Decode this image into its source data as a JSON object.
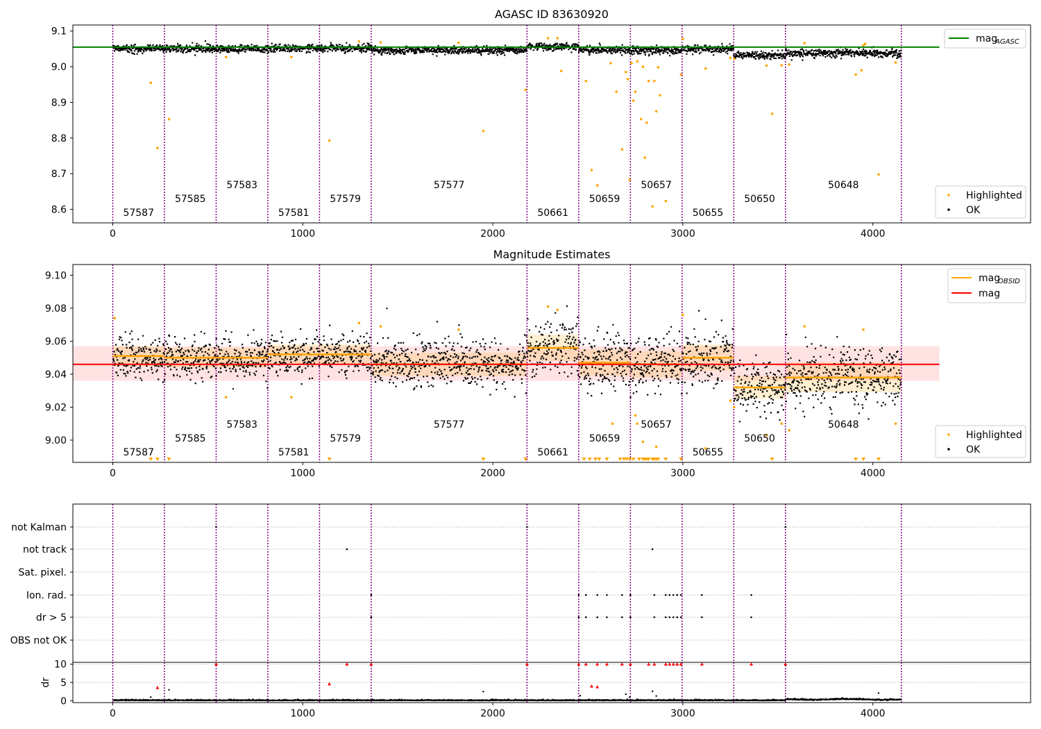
{
  "figure": {
    "obs_boundaries": [
      0,
      272,
      544,
      816,
      1088,
      1360,
      2180,
      2452,
      2724,
      2996,
      3268,
      3540,
      4150
    ],
    "obsid_labels": [
      {
        "text": "57587",
        "x": 136,
        "level": 0
      },
      {
        "text": "57585",
        "x": 408,
        "level": 1
      },
      {
        "text": "57583",
        "x": 680,
        "level": 2
      },
      {
        "text": "57581",
        "x": 952,
        "level": 0
      },
      {
        "text": "57579",
        "x": 1224,
        "level": 1
      },
      {
        "text": "57577",
        "x": 1770,
        "level": 2
      },
      {
        "text": "50661",
        "x": 2316,
        "level": 0
      },
      {
        "text": "50659",
        "x": 2588,
        "level": 1
      },
      {
        "text": "50657",
        "x": 2860,
        "level": 2
      },
      {
        "text": "50655",
        "x": 3132,
        "level": 0
      },
      {
        "text": "50650",
        "x": 3404,
        "level": 1
      },
      {
        "text": "50648",
        "x": 3845,
        "level": 2
      }
    ]
  },
  "chart_data": [
    {
      "type": "scatter",
      "title": "AGASC ID 83630920",
      "xlim": [
        -210,
        4830
      ],
      "ylim": [
        8.562,
        9.117
      ],
      "xticks": [
        "0",
        "1000",
        "2000",
        "3000",
        "4000"
      ],
      "yticks": [
        "8.6",
        "8.7",
        "8.8",
        "8.9",
        "9.0",
        "9.1"
      ],
      "mag_agasc": 9.055,
      "legend_lines": [
        {
          "label": "mag",
          "sub": "AGASC",
          "color": "#008000"
        }
      ],
      "legend_points": [
        {
          "label": "Highlighted",
          "color": "#ffa500"
        },
        {
          "label": "OK",
          "color": "#000000"
        }
      ],
      "segment_means": [
        9.051,
        9.05,
        9.05,
        9.052,
        9.052,
        9.046,
        9.056,
        9.047,
        9.046,
        9.05,
        9.032,
        9.038
      ],
      "highlighted": [
        [
          200,
          8.955
        ],
        [
          235,
          8.772
        ],
        [
          296,
          8.853
        ],
        [
          596,
          9.027
        ],
        [
          940,
          9.027
        ],
        [
          1140,
          8.793
        ],
        [
          1296,
          9.071
        ],
        [
          1410,
          9.068
        ],
        [
          1820,
          9.067
        ],
        [
          1950,
          8.82
        ],
        [
          2172,
          8.935
        ],
        [
          2290,
          9.08
        ],
        [
          2340,
          9.08
        ],
        [
          2360,
          8.988
        ],
        [
          2490,
          8.96
        ],
        [
          2520,
          8.71
        ],
        [
          2550,
          8.667
        ],
        [
          2620,
          9.01
        ],
        [
          2650,
          8.93
        ],
        [
          2680,
          8.768
        ],
        [
          2700,
          8.985
        ],
        [
          2710,
          8.965
        ],
        [
          2720,
          8.683
        ],
        [
          2730,
          9.01
        ],
        [
          2740,
          8.905
        ],
        [
          2750,
          8.93
        ],
        [
          2760,
          9.015
        ],
        [
          2780,
          8.853
        ],
        [
          2790,
          9.0
        ],
        [
          2800,
          8.745
        ],
        [
          2810,
          8.843
        ],
        [
          2820,
          8.96
        ],
        [
          2840,
          8.608
        ],
        [
          2850,
          8.96
        ],
        [
          2860,
          8.875
        ],
        [
          2870,
          8.998
        ],
        [
          2880,
          8.92
        ],
        [
          2910,
          8.623
        ],
        [
          2990,
          8.978
        ],
        [
          3000,
          9.078
        ],
        [
          3120,
          8.995
        ],
        [
          3250,
          9.025
        ],
        [
          3270,
          9.022
        ],
        [
          3440,
          9.003
        ],
        [
          3470,
          8.868
        ],
        [
          3520,
          9.004
        ],
        [
          3560,
          9.006
        ],
        [
          3640,
          9.066
        ],
        [
          3910,
          8.978
        ],
        [
          3940,
          8.99
        ],
        [
          3950,
          9.06
        ],
        [
          3960,
          9.064
        ],
        [
          4030,
          8.698
        ],
        [
          4120,
          9.012
        ]
      ]
    },
    {
      "type": "scatter",
      "title": "Magnitude Estimates",
      "xlim": [
        -210,
        4830
      ],
      "ylim": [
        8.9865,
        9.1065
      ],
      "xticks": [
        "0",
        "1000",
        "2000",
        "3000",
        "4000"
      ],
      "yticks": [
        "9.00",
        "9.02",
        "9.04",
        "9.06",
        "9.08",
        "9.10"
      ],
      "mag": 9.046,
      "mag_band": [
        9.036,
        9.057
      ],
      "legend_lines": [
        {
          "label": "mag",
          "sub": "OBSID",
          "color": "#ffa500"
        },
        {
          "label": "mag",
          "sub": "",
          "color": "#ff0000"
        }
      ],
      "legend_points": [
        {
          "label": "Highlighted",
          "color": "#ffa500"
        },
        {
          "label": "OK",
          "color": "#000000"
        }
      ],
      "segment_means": [
        9.051,
        9.05,
        9.05,
        9.052,
        9.052,
        9.046,
        9.056,
        9.047,
        9.046,
        9.05,
        9.032,
        9.038
      ],
      "segment_sigma": [
        0.006,
        0.006,
        0.006,
        0.006,
        0.006,
        0.007,
        0.008,
        0.008,
        0.008,
        0.008,
        0.007,
        0.009
      ],
      "highlighted": [
        [
          10,
          9.074
        ],
        [
          596,
          9.026
        ],
        [
          940,
          9.026
        ],
        [
          1296,
          9.071
        ],
        [
          1410,
          9.069
        ],
        [
          1820,
          9.067
        ],
        [
          2290,
          9.081
        ],
        [
          2340,
          9.079
        ],
        [
          2630,
          9.01
        ],
        [
          2750,
          9.015
        ],
        [
          2760,
          9.01
        ],
        [
          2790,
          8.999
        ],
        [
          2860,
          8.996
        ],
        [
          3000,
          9.076
        ],
        [
          3120,
          8.995
        ],
        [
          3250,
          9.024
        ],
        [
          3270,
          9.02
        ],
        [
          3440,
          9.003
        ],
        [
          3520,
          9.01
        ],
        [
          3560,
          9.006
        ],
        [
          3640,
          9.069
        ],
        [
          3950,
          9.067
        ],
        [
          4120,
          9.01
        ]
      ],
      "below_axis_markers": [
        200,
        235,
        296,
        1140,
        1950,
        2172,
        2480,
        2510,
        2540,
        2560,
        2600,
        2670,
        2690,
        2705,
        2720,
        2740,
        2770,
        2790,
        2800,
        2810,
        2820,
        2840,
        2850,
        2860,
        2870,
        2910,
        2990,
        3470,
        3910,
        3950,
        4030
      ]
    },
    {
      "type": "scatter",
      "xlim": [
        -210,
        4830
      ],
      "categories": [
        "not Kalman",
        "not track",
        "Sat. pixel.",
        "Ion. rad.",
        "dr > 5",
        "OBS not OK"
      ],
      "flag_points": {
        "not Kalman": [
          544,
          2180,
          3540
        ],
        "not track": [
          1232,
          2840
        ],
        "Sat. pixel.": [],
        "Ion. rad.": [
          1360,
          2452,
          2490,
          2550,
          2600,
          2680,
          2724,
          2850,
          2910,
          2930,
          2950,
          2970,
          2990,
          3100,
          3360
        ],
        "dr > 5": [
          1360,
          2452,
          2490,
          2550,
          2600,
          2680,
          2724,
          2850,
          2910,
          2930,
          2950,
          2970,
          2990,
          3100,
          3360
        ],
        "OBS not OK": []
      },
      "dr_yticks": [
        "0",
        "5",
        "10"
      ],
      "dr_ylabel": "dr",
      "dr_ylim": [
        -0.5,
        10.5
      ],
      "dr_xticks": [
        "0",
        "1000",
        "2000",
        "3000",
        "4000"
      ],
      "dr_high": [
        [
          544,
          10
        ],
        [
          1232,
          10
        ],
        [
          1360,
          10
        ],
        [
          2180,
          10
        ],
        [
          2452,
          10
        ],
        [
          2490,
          10
        ],
        [
          2550,
          10
        ],
        [
          2600,
          10
        ],
        [
          2680,
          10
        ],
        [
          2724,
          10
        ],
        [
          2820,
          10
        ],
        [
          2850,
          10
        ],
        [
          2910,
          10
        ],
        [
          2930,
          10
        ],
        [
          2950,
          10
        ],
        [
          2970,
          10
        ],
        [
          2990,
          10
        ],
        [
          3100,
          10
        ],
        [
          3360,
          10
        ],
        [
          3540,
          10
        ],
        [
          235,
          3.6
        ],
        [
          1140,
          4.6
        ],
        [
          2520,
          4.0
        ],
        [
          2550,
          3.8
        ]
      ],
      "dr_spikes": [
        [
          296,
          3.0
        ],
        [
          200,
          1.0
        ],
        [
          1950,
          2.5
        ],
        [
          2460,
          1.4
        ],
        [
          2700,
          1.8
        ],
        [
          2720,
          1.0
        ],
        [
          2840,
          2.6
        ],
        [
          2860,
          1.3
        ],
        [
          4030,
          2.1
        ]
      ]
    }
  ]
}
